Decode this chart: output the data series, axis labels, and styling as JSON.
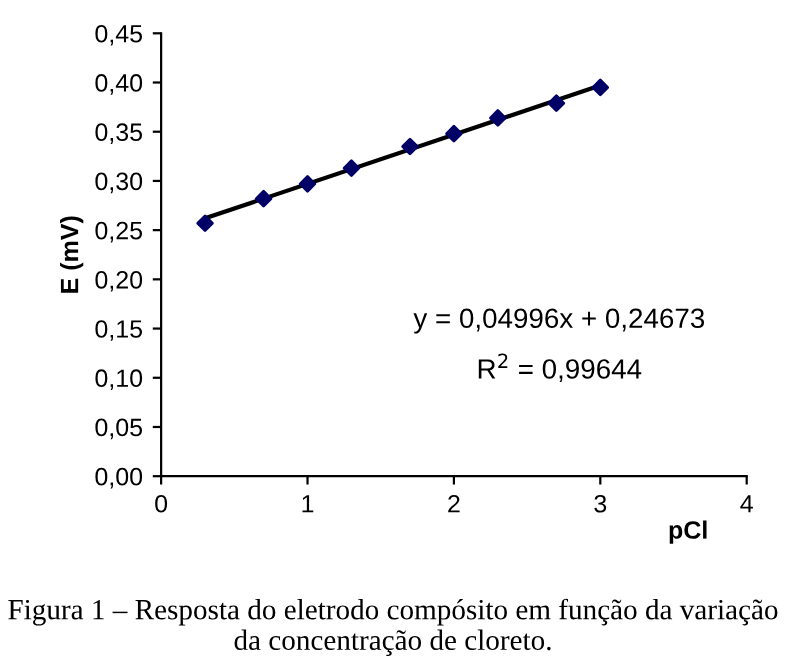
{
  "chart_data": {
    "type": "scatter",
    "xlabel": "pCl",
    "ylabel": "E (mV)",
    "series": [
      {
        "color": "#000066",
        "marker": "diamond",
        "x": [
          0.3,
          0.7,
          1.0,
          1.3,
          1.7,
          2.0,
          2.3,
          2.7,
          3.0
        ],
        "values": [
          0.257,
          0.282,
          0.297,
          0.313,
          0.335,
          0.348,
          0.364,
          0.379,
          0.395
        ]
      },
      {
        "type": "line",
        "color": "#000000",
        "x": [
          0.3,
          3.0
        ],
        "values": [
          0.262,
          0.397
        ]
      }
    ],
    "xlim": [
      0,
      4
    ],
    "xticks": [
      0,
      1,
      2,
      3,
      4
    ],
    "ylim": [
      0,
      0.45
    ],
    "yticks": [
      {
        "value": 0,
        "label": "0,00"
      },
      {
        "value": 0.05,
        "label": "0,05"
      },
      {
        "value": 0.1,
        "label": "0,10"
      },
      {
        "value": 0.15,
        "label": "0,15"
      },
      {
        "value": 0.2,
        "label": "0,20"
      },
      {
        "value": 0.25,
        "label": "0,25"
      },
      {
        "value": 0.3,
        "label": "0,30"
      },
      {
        "value": 0.35,
        "label": "0,35"
      },
      {
        "value": 0.4,
        "label": "0,40"
      },
      {
        "value": 0.45,
        "label": "0,45"
      }
    ],
    "annotations": [
      "y = 0,04996x + 0,24673",
      "R$^{2}$ = 0,99644",
      "Figura 1 – Resposta do eletrodo compósito em função da variação da concentração de cloreto."
    ],
    "grid": false,
    "legend": false
  }
}
